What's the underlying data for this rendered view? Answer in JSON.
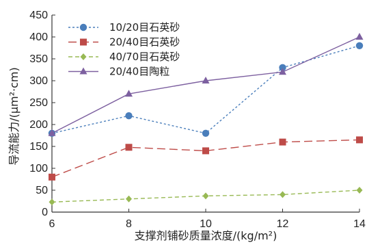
{
  "chart_data": {
    "type": "line",
    "title": "",
    "xlabel": "支撑剂铺砂质量浓度/(kg/m²)",
    "ylabel": "导流能力/(μm²·cm)",
    "x": [
      6,
      8,
      10,
      12,
      14
    ],
    "xlim": [
      6,
      14
    ],
    "ylim": [
      0,
      450
    ],
    "x_ticks": [
      "6",
      "8",
      "10",
      "12",
      "14"
    ],
    "y_ticks": [
      "0",
      "50",
      "100",
      "150",
      "200",
      "250",
      "300",
      "350",
      "400",
      "450"
    ],
    "grid": false,
    "legend_position": "top-left",
    "series": [
      {
        "name": "10/20目石英砂",
        "values": [
          180,
          220,
          180,
          330,
          380
        ],
        "color": "#4a7ebb",
        "marker": "circle",
        "line_style": "dotted"
      },
      {
        "name": "20/40目石英砂",
        "values": [
          80,
          148,
          140,
          160,
          165
        ],
        "color": "#be4b48",
        "marker": "square",
        "line_style": "long-dash"
      },
      {
        "name": "40/70目石英砂",
        "values": [
          23,
          30,
          37,
          40,
          50
        ],
        "color": "#98b954",
        "marker": "diamond",
        "line_style": "dash"
      },
      {
        "name": "20/40目陶粒",
        "values": [
          180,
          270,
          300,
          320,
          400
        ],
        "color": "#7d60a0",
        "marker": "triangle",
        "line_style": "solid"
      }
    ]
  }
}
